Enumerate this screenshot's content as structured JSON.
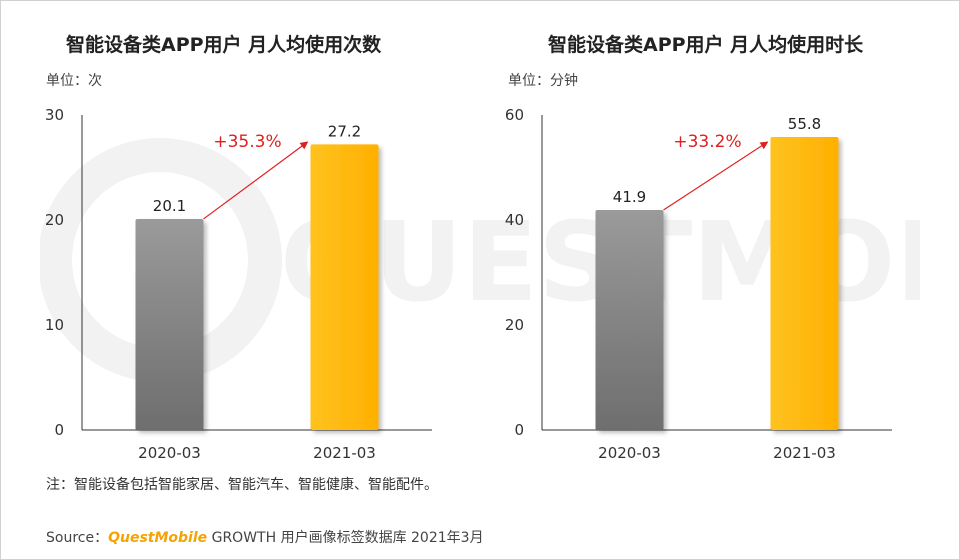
{
  "chart_data": [
    {
      "type": "bar",
      "title": "智能设备类APP用户 月人均使用次数",
      "unit_label": "单位：次",
      "categories": [
        "2020-03",
        "2021-03"
      ],
      "values": [
        20.1,
        27.2
      ],
      "value_labels": [
        "20.1",
        "27.2"
      ],
      "ylim": [
        0,
        30
      ],
      "yticks": [
        0,
        10,
        20,
        30
      ],
      "growth_label": "+35.3%",
      "bar_colors": [
        "#888888",
        "#ffb81c"
      ],
      "growth_color": "#e02020",
      "grid": false
    },
    {
      "type": "bar",
      "title": "智能设备类APP用户 月人均使用时长",
      "unit_label": "单位：分钟",
      "categories": [
        "2020-03",
        "2021-03"
      ],
      "values": [
        41.9,
        55.8
      ],
      "value_labels": [
        "41.9",
        "55.8"
      ],
      "ylim": [
        0,
        60
      ],
      "yticks": [
        0,
        20,
        40,
        60
      ],
      "growth_label": "+33.2%",
      "bar_colors": [
        "#888888",
        "#ffb81c"
      ],
      "growth_color": "#e02020",
      "grid": false
    }
  ],
  "note": "注：智能设备包括智能家居、智能汽车、智能健康、智能配件。",
  "source": {
    "prefix": "Source：",
    "brand": "QuestMobile",
    "suffix": "GROWTH 用户画像标签数据库 2021年3月"
  },
  "watermark_text": "QUESTMOBILE"
}
